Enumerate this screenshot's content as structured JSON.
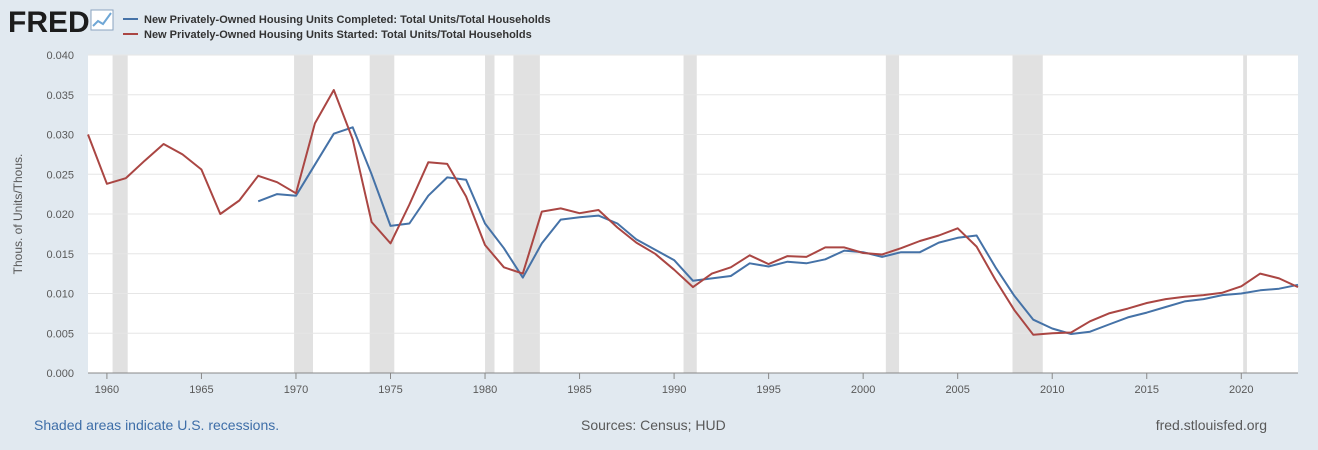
{
  "logo": {
    "text": "FRED"
  },
  "colors": {
    "completed": "#4572a7",
    "started": "#aa4643",
    "recession": "#e1e1e1",
    "background": "#e1e9f0"
  },
  "footer": {
    "left": "Shaded areas indicate U.S. recessions.",
    "middle": "Sources: Census; HUD",
    "right": "fred.stlouisfed.org"
  },
  "chart_data": {
    "type": "line",
    "ylabel": "Thous. of Units/Thous.",
    "xlim": [
      1959,
      2023
    ],
    "ylim": [
      0,
      0.04
    ],
    "yticks": [
      0.0,
      0.005,
      0.01,
      0.015,
      0.02,
      0.025,
      0.03,
      0.035,
      0.04
    ],
    "ytick_labels": [
      "0.000",
      "0.005",
      "0.010",
      "0.015",
      "0.020",
      "0.025",
      "0.030",
      "0.035",
      "0.040"
    ],
    "xticks": [
      1960,
      1965,
      1970,
      1975,
      1980,
      1985,
      1990,
      1995,
      2000,
      2005,
      2010,
      2015,
      2020
    ],
    "xtick_labels": [
      "1960",
      "1965",
      "1970",
      "1975",
      "1980",
      "1985",
      "1990",
      "1995",
      "2000",
      "2005",
      "2010",
      "2015",
      "2020"
    ],
    "grid": true,
    "legend_position": "top-left",
    "recessions": [
      [
        1960.3,
        1961.1
      ],
      [
        1969.9,
        1970.9
      ],
      [
        1973.9,
        1975.2
      ],
      [
        1980.0,
        1980.5
      ],
      [
        1981.5,
        1982.9
      ],
      [
        1990.5,
        1991.2
      ],
      [
        2001.2,
        2001.9
      ],
      [
        2007.9,
        2009.5
      ],
      [
        2020.1,
        2020.3
      ]
    ],
    "series": [
      {
        "name": "New Privately-Owned Housing Units Completed: Total Units/Total Households",
        "color": "#4572a7",
        "x": [
          1968,
          1969,
          1970,
          1971,
          1972,
          1973,
          1974,
          1975,
          1976,
          1977,
          1978,
          1979,
          1980,
          1981,
          1982,
          1983,
          1984,
          1985,
          1986,
          1987,
          1988,
          1989,
          1990,
          1991,
          1992,
          1993,
          1994,
          1995,
          1996,
          1997,
          1998,
          1999,
          2000,
          2001,
          2002,
          2003,
          2004,
          2005,
          2006,
          2007,
          2008,
          2009,
          2010,
          2011,
          2012,
          2013,
          2014,
          2015,
          2016,
          2017,
          2018,
          2019,
          2020,
          2021,
          2022,
          2023
        ],
        "y": [
          0.0216,
          0.0225,
          0.0223,
          0.0262,
          0.0301,
          0.0309,
          0.025,
          0.0185,
          0.0188,
          0.0223,
          0.0246,
          0.0243,
          0.0188,
          0.0157,
          0.012,
          0.0163,
          0.0193,
          0.0196,
          0.0198,
          0.0188,
          0.0168,
          0.0155,
          0.0142,
          0.0116,
          0.0119,
          0.0122,
          0.0138,
          0.0134,
          0.014,
          0.0138,
          0.0143,
          0.0154,
          0.0152,
          0.0146,
          0.0152,
          0.0152,
          0.0164,
          0.017,
          0.0173,
          0.0133,
          0.0097,
          0.0067,
          0.0056,
          0.0049,
          0.0052,
          0.0061,
          0.007,
          0.0076,
          0.0083,
          0.009,
          0.0093,
          0.0098,
          0.01,
          0.0104,
          0.0106,
          0.0111
        ]
      },
      {
        "name": "New Privately-Owned Housing Units Started: Total Units/Total Households",
        "color": "#aa4643",
        "x": [
          1959,
          1960,
          1961,
          1962,
          1963,
          1964,
          1965,
          1966,
          1967,
          1968,
          1969,
          1970,
          1971,
          1972,
          1973,
          1974,
          1975,
          1976,
          1977,
          1978,
          1979,
          1980,
          1981,
          1982,
          1983,
          1984,
          1985,
          1986,
          1987,
          1988,
          1989,
          1990,
          1991,
          1992,
          1993,
          1994,
          1995,
          1996,
          1997,
          1998,
          1999,
          2000,
          2001,
          2002,
          2003,
          2004,
          2005,
          2006,
          2007,
          2008,
          2009,
          2010,
          2011,
          2012,
          2013,
          2014,
          2015,
          2016,
          2017,
          2018,
          2019,
          2020,
          2021,
          2022,
          2023
        ],
        "y": [
          0.03,
          0.0238,
          0.0245,
          0.0267,
          0.0288,
          0.0275,
          0.0256,
          0.02,
          0.0217,
          0.0248,
          0.024,
          0.0226,
          0.0314,
          0.0356,
          0.0294,
          0.019,
          0.0163,
          0.0212,
          0.0265,
          0.0263,
          0.0222,
          0.0161,
          0.0133,
          0.0125,
          0.0203,
          0.0207,
          0.0201,
          0.0205,
          0.0183,
          0.0164,
          0.015,
          0.013,
          0.0108,
          0.0125,
          0.0133,
          0.0148,
          0.0137,
          0.0147,
          0.0146,
          0.0158,
          0.0158,
          0.0151,
          0.0149,
          0.0157,
          0.0166,
          0.0173,
          0.0182,
          0.0159,
          0.0117,
          0.0079,
          0.0048,
          0.005,
          0.0051,
          0.0065,
          0.0075,
          0.0081,
          0.0088,
          0.0093,
          0.0096,
          0.0098,
          0.0101,
          0.0109,
          0.0125,
          0.0119,
          0.0108
        ]
      }
    ]
  }
}
